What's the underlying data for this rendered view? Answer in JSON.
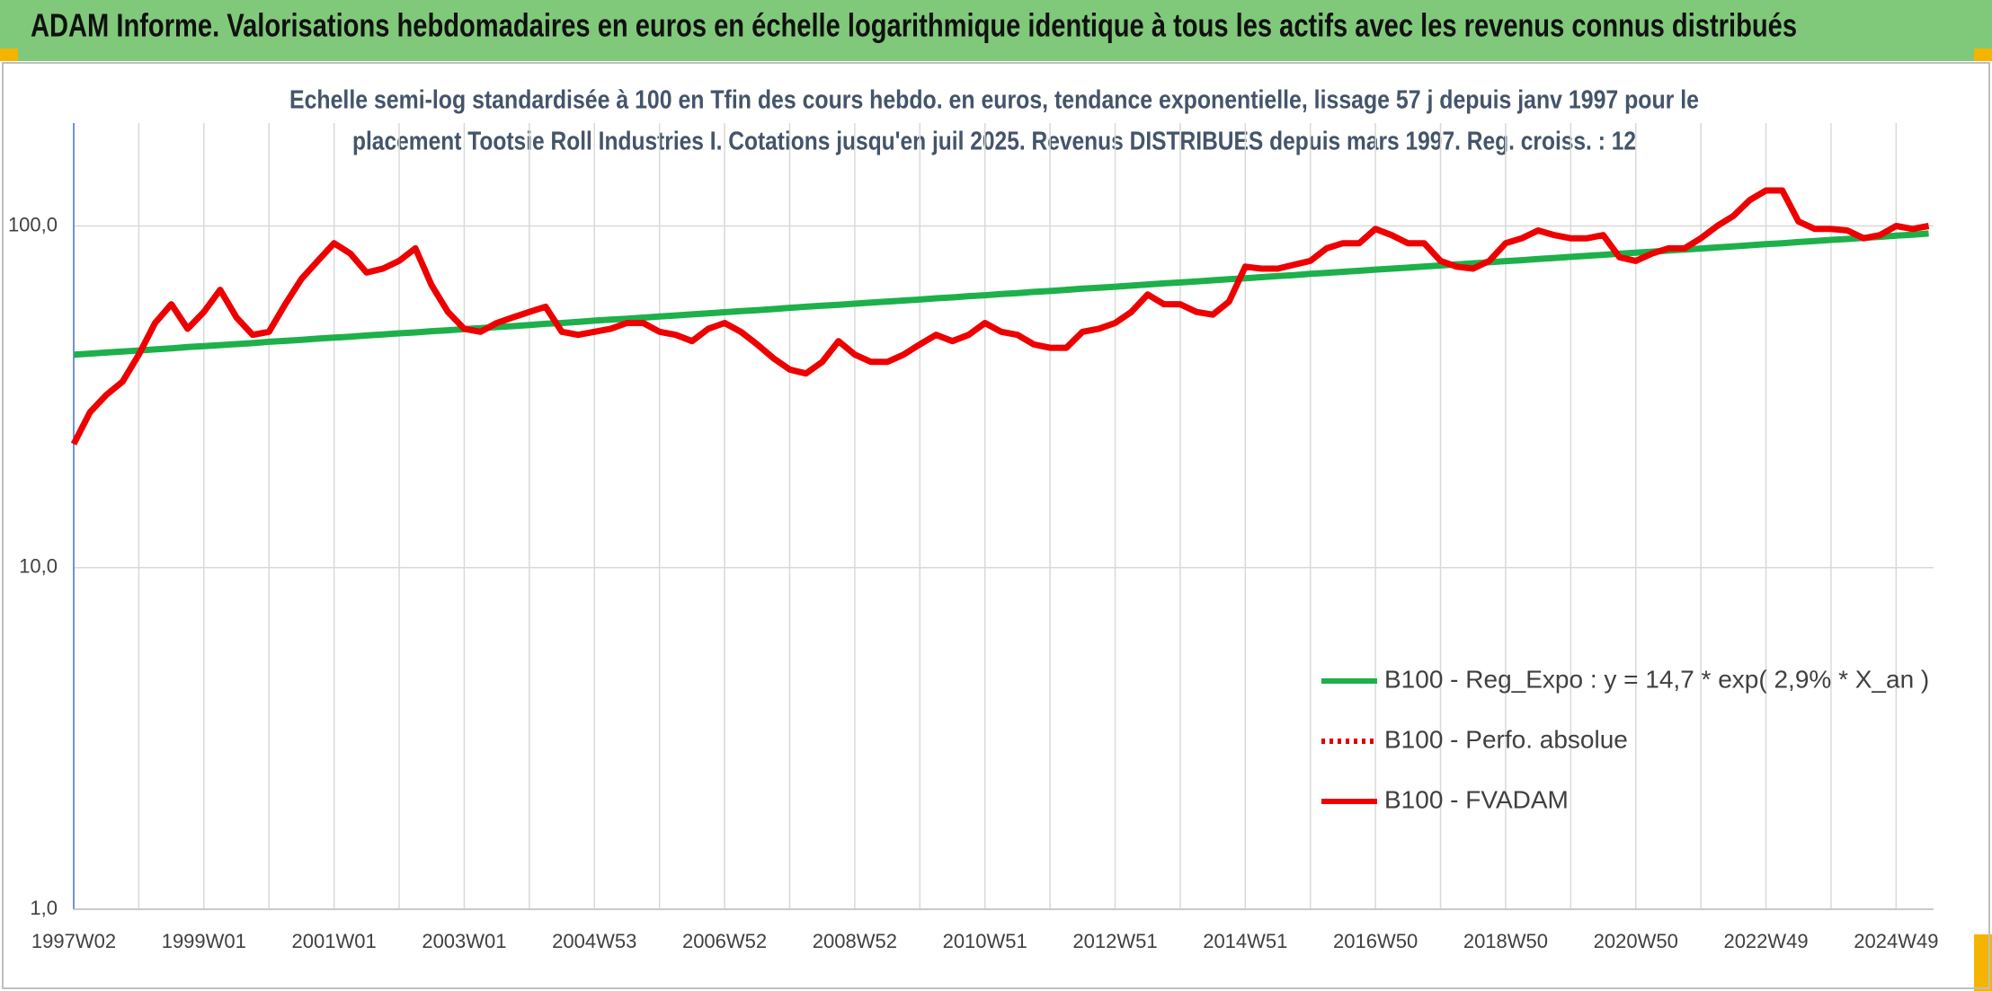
{
  "header": {
    "title": "ADAM Informe. Valorisations hebdomadaires en euros en échelle logarithmique identique à tous les actifs avec les revenus connus distribués"
  },
  "chart_data": {
    "type": "line",
    "subtitle": [
      "Echelle semi-log standardisée à 100 en Tfin des cours hebdo. en euros, tendance exponentielle, lissage 57 j depuis janv 1997 pour le",
      "placement Tootsie Roll Industries I. Cotations jusqu'en juil 2025. Revenus DISTRIBUES depuis mars 1997. Reg. croiss. : 12"
    ],
    "log_scale": true,
    "grid": true,
    "legend": "lower right",
    "ylim": [
      1,
      200
    ],
    "yticks": [
      {
        "value": 1,
        "label": "1,0"
      },
      {
        "value": 10,
        "label": "10,0"
      },
      {
        "value": 100,
        "label": "100,0"
      }
    ],
    "categories": [
      "1997W02",
      null,
      null,
      null,
      null,
      null,
      null,
      null,
      "1999W01",
      null,
      null,
      null,
      null,
      null,
      null,
      null,
      "2001W01",
      null,
      null,
      null,
      null,
      null,
      null,
      null,
      "2003W01",
      null,
      null,
      null,
      null,
      null,
      null,
      null,
      "2004W53",
      null,
      null,
      null,
      null,
      null,
      null,
      null,
      "2006W52",
      null,
      null,
      null,
      null,
      null,
      null,
      null,
      "2008W52",
      null,
      null,
      null,
      null,
      null,
      null,
      null,
      "2010W51",
      null,
      null,
      null,
      null,
      null,
      null,
      null,
      "2012W51",
      null,
      null,
      null,
      null,
      null,
      null,
      null,
      "2014W51",
      null,
      null,
      null,
      null,
      null,
      null,
      null,
      "2016W50",
      null,
      null,
      null,
      null,
      null,
      null,
      null,
      "2018W50",
      null,
      null,
      null,
      null,
      null,
      null,
      null,
      "2020W50",
      null,
      null,
      null,
      null,
      null,
      null,
      null,
      "2022W49",
      null,
      null,
      null,
      null,
      null,
      null,
      null,
      "2024W49",
      null,
      null
    ],
    "series": [
      {
        "name": "B100 - Reg_Expo : y = 14,7 * exp( 2,9% *  X_an )",
        "color": "#1db04b",
        "dash": "solid",
        "values": [
          42.0,
          42.3,
          42.6,
          42.9,
          43.2,
          43.5,
          43.8,
          44.2,
          44.5,
          44.8,
          45.1,
          45.4,
          45.8,
          46.1,
          46.4,
          46.8,
          47.1,
          47.4,
          47.8,
          48.1,
          48.5,
          48.8,
          49.2,
          49.5,
          49.9,
          50.2,
          50.6,
          50.9,
          51.3,
          51.7,
          52.0,
          52.4,
          52.8,
          53.2,
          53.5,
          53.9,
          54.3,
          54.7,
          55.1,
          55.5,
          55.9,
          56.3,
          56.7,
          57.1,
          57.6,
          58.0,
          58.4,
          58.8,
          59.2,
          59.7,
          60.1,
          60.5,
          60.9,
          61.4,
          61.8,
          62.3,
          62.7,
          63.2,
          63.6,
          64.1,
          64.5,
          65.0,
          65.5,
          65.9,
          66.4,
          66.9,
          67.4,
          67.9,
          68.3,
          68.8,
          69.3,
          69.8,
          70.3,
          70.8,
          71.3,
          71.8,
          72.4,
          72.9,
          73.4,
          73.9,
          74.5,
          75.0,
          75.5,
          76.1,
          76.6,
          77.2,
          77.7,
          78.3,
          78.9,
          79.4,
          80.0,
          80.6,
          81.2,
          81.7,
          82.3,
          82.9,
          83.5,
          84.1,
          84.7,
          85.3,
          85.9,
          86.5,
          87.1,
          87.8,
          88.4,
          89.0,
          89.7,
          90.3,
          91.0,
          91.6,
          92.3,
          92.9,
          93.7,
          94.3,
          95.0
        ]
      },
      {
        "name": "B100 - Perfo. absolue",
        "color": "#e00000",
        "dash": "dotted",
        "values": [
          null,
          null,
          null,
          null,
          null,
          null,
          null,
          null,
          null,
          null,
          null,
          null,
          null,
          null,
          null,
          null,
          null,
          null,
          null,
          null,
          null,
          null,
          null,
          null,
          null,
          null,
          null,
          null,
          null,
          null,
          null,
          null,
          null,
          null,
          null,
          null,
          null,
          null,
          null,
          null,
          null,
          null,
          null,
          null,
          null,
          null,
          null,
          null,
          null,
          null,
          null,
          null,
          null,
          null,
          null,
          null,
          null,
          null,
          null,
          null,
          null,
          null,
          null,
          null,
          null,
          null,
          null,
          null,
          null,
          null,
          null,
          null,
          null,
          null,
          null,
          null,
          null,
          null,
          null,
          null,
          null,
          null,
          null,
          null,
          null,
          null,
          null,
          null,
          null,
          null,
          null,
          null,
          null,
          null,
          null,
          null,
          null,
          null,
          null,
          null,
          null,
          null,
          null,
          null,
          null,
          null,
          null,
          null,
          null,
          null,
          null,
          null,
          null,
          null,
          null
        ]
      },
      {
        "name": "B100 - FVADAM",
        "color": "#ee0000",
        "dash": "solid",
        "values": [
          23,
          28.5,
          32,
          35,
          42,
          52,
          59,
          50,
          56,
          65,
          54,
          48,
          49,
          59,
          70,
          79,
          89,
          83,
          73,
          75,
          79,
          86,
          67,
          56,
          50,
          49,
          52,
          54,
          56,
          58,
          49,
          48,
          49,
          50,
          52,
          52,
          49,
          48,
          46,
          50,
          52,
          49,
          45,
          41,
          38,
          37,
          40,
          46,
          42,
          40,
          40,
          42,
          45,
          48,
          46,
          48,
          52,
          49,
          48,
          45,
          44,
          44,
          49,
          50,
          52,
          56,
          63,
          59,
          59,
          56,
          55,
          60,
          76,
          75,
          75,
          77,
          79,
          86,
          89,
          89,
          98,
          94,
          89,
          89,
          79,
          76,
          75,
          79,
          89,
          92,
          97,
          94,
          92,
          92,
          94,
          81,
          79,
          83,
          86,
          86,
          92,
          100,
          107,
          119,
          127,
          127,
          103,
          98,
          98,
          97,
          92,
          94,
          100,
          98,
          100
        ]
      }
    ]
  }
}
